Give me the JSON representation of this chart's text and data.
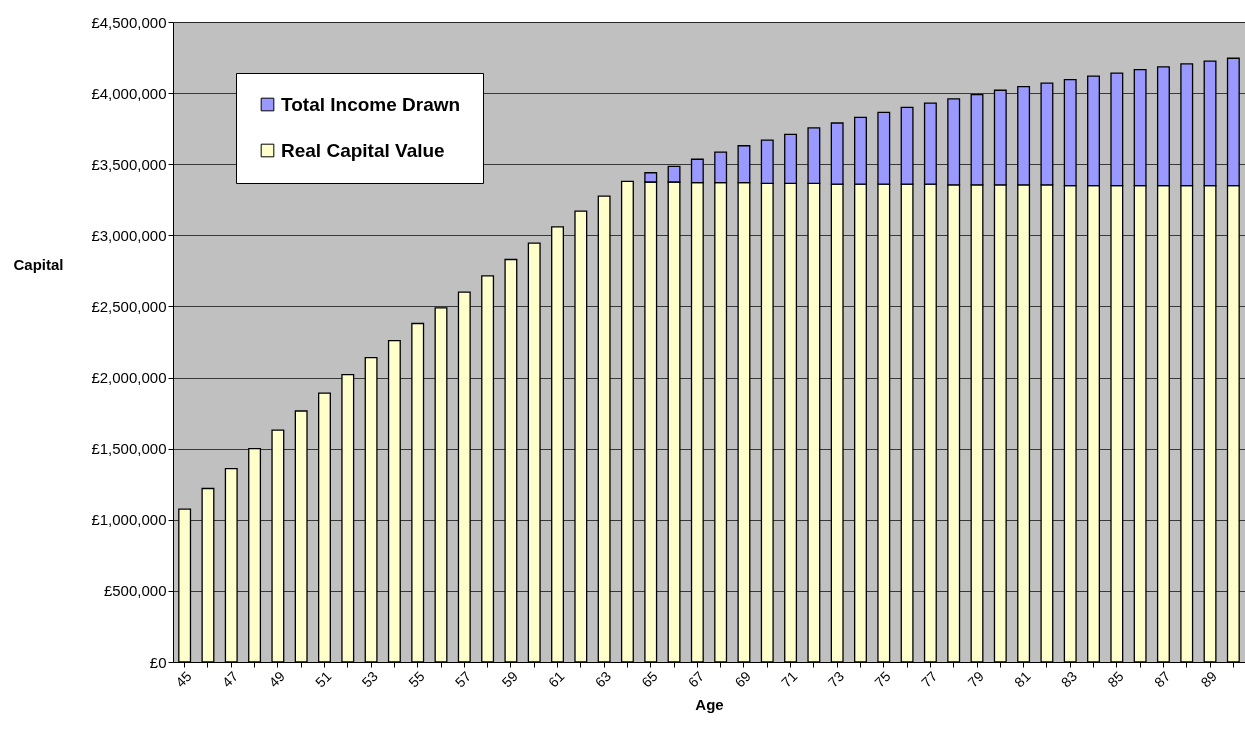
{
  "chart_data": {
    "type": "bar",
    "xlabel": "Age",
    "ylabel": "Capital",
    "stacked": true,
    "categories": [
      "45",
      null,
      "47",
      null,
      "49",
      null,
      "51",
      null,
      "53",
      null,
      "55",
      null,
      "57",
      null,
      "59",
      null,
      "61",
      null,
      "63",
      null,
      "65",
      null,
      "67",
      null,
      "69",
      null,
      "71",
      null,
      "73",
      null,
      "75",
      null,
      "77",
      null,
      "79",
      null,
      "81",
      null,
      "83",
      null,
      "85",
      null,
      "87",
      null,
      "89",
      null
    ],
    "series": [
      {
        "name": "Real Capital Value",
        "color": "#ffffcc",
        "values": [
          1075000,
          1220000,
          1360000,
          1500000,
          1630000,
          1765000,
          1890000,
          2020000,
          2140000,
          2260000,
          2380000,
          2490000,
          2600000,
          2715000,
          2830000,
          2945000,
          3060000,
          3170000,
          3275000,
          3380000,
          3375000,
          3375000,
          3370000,
          3370000,
          3370000,
          3365000,
          3365000,
          3365000,
          3360000,
          3360000,
          3360000,
          3360000,
          3360000,
          3355000,
          3355000,
          3355000,
          3355000,
          3355000,
          3350000,
          3350000,
          3350000,
          3350000,
          3350000,
          3350000,
          3350000,
          3350000
        ]
      },
      {
        "name": "Total Income Drawn",
        "color": "#9999ff",
        "values": [
          null,
          null,
          null,
          null,
          null,
          null,
          null,
          null,
          null,
          null,
          null,
          null,
          null,
          null,
          null,
          null,
          null,
          null,
          null,
          null,
          65000,
          110000,
          165000,
          215000,
          260000,
          305000,
          345000,
          390000,
          430000,
          470000,
          505000,
          540000,
          570000,
          605000,
          635000,
          665000,
          690000,
          715000,
          745000,
          770000,
          790000,
          815000,
          835000,
          855000,
          875000,
          895000
        ]
      }
    ],
    "ylim": [
      0,
      4500000
    ],
    "yticks": [
      {
        "value": 0,
        "label": "£0"
      },
      {
        "value": 500000,
        "label": "£500,000"
      },
      {
        "value": 1000000,
        "label": "£1,000,000"
      },
      {
        "value": 1500000,
        "label": "£1,500,000"
      },
      {
        "value": 2000000,
        "label": "£2,000,000"
      },
      {
        "value": 2500000,
        "label": "£2,500,000"
      },
      {
        "value": 3000000,
        "label": "£3,000,000"
      },
      {
        "value": 3500000,
        "label": "£3,500,000"
      },
      {
        "value": 4000000,
        "label": "£4,000,000"
      },
      {
        "value": 4500000,
        "label": "£4,500,000"
      }
    ],
    "grid": "y",
    "legend": "top left"
  }
}
